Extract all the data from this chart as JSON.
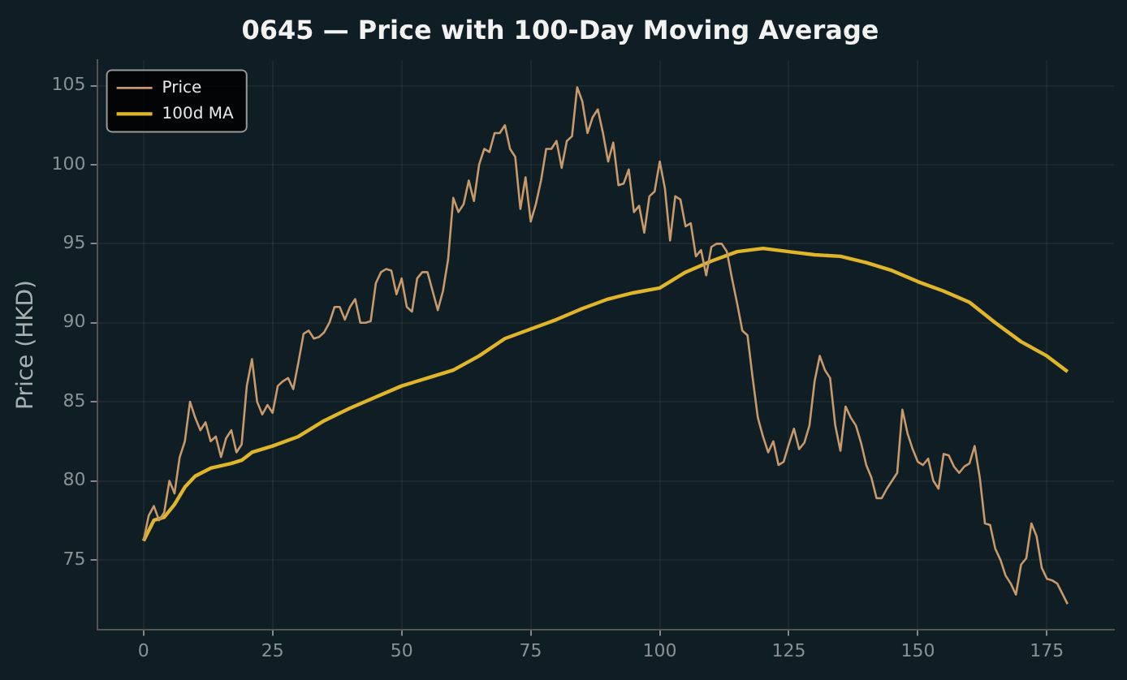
{
  "chart_data": {
    "type": "line",
    "title": "0645 — Price with 100-Day Moving Average",
    "ylabel": "Price (HKD)",
    "xlim": [
      -9,
      188
    ],
    "ylim": [
      70.6,
      106.6
    ],
    "xticks": [
      0,
      25,
      50,
      75,
      100,
      125,
      150,
      175
    ],
    "yticks": [
      75,
      80,
      85,
      90,
      95,
      100,
      105
    ],
    "grid": true,
    "legend": "top left",
    "marker": "none",
    "line_style": "solid",
    "series": [
      {
        "name": "Price",
        "color": "#c8996a",
        "x": [
          0,
          1,
          2,
          3,
          4,
          5,
          6,
          7,
          8,
          9,
          10,
          11,
          12,
          13,
          14,
          15,
          16,
          17,
          18,
          19,
          20,
          21,
          22,
          23,
          24,
          25,
          26,
          27,
          28,
          29,
          30,
          31,
          32,
          33,
          34,
          35,
          36,
          37,
          38,
          39,
          40,
          41,
          42,
          43,
          44,
          45,
          46,
          47,
          48,
          49,
          50,
          51,
          52,
          53,
          54,
          55,
          56,
          57,
          58,
          59,
          60,
          61,
          62,
          63,
          64,
          65,
          66,
          67,
          68,
          69,
          70,
          71,
          72,
          73,
          74,
          75,
          76,
          77,
          78,
          79,
          80,
          81,
          82,
          83,
          84,
          85,
          86,
          87,
          88,
          89,
          90,
          91,
          92,
          93,
          94,
          95,
          96,
          97,
          98,
          99,
          100,
          101,
          102,
          103,
          104,
          105,
          106,
          107,
          108,
          109,
          110,
          111,
          112,
          113,
          114,
          115,
          116,
          117,
          118,
          119,
          120,
          121,
          122,
          123,
          124,
          125,
          126,
          127,
          128,
          129,
          130,
          131,
          132,
          133,
          134,
          135,
          136,
          137,
          138,
          139,
          140,
          141,
          142,
          143,
          144,
          145,
          146,
          147,
          148,
          149,
          150,
          151,
          152,
          153,
          154,
          155,
          156,
          157,
          158,
          159,
          160,
          161,
          162,
          163,
          164,
          165,
          166,
          167,
          168,
          169,
          170,
          171,
          172,
          173,
          174,
          175,
          176,
          177,
          179
        ],
        "values": [
          76.2,
          77.8,
          78.4,
          77.5,
          78.0,
          80.0,
          79.2,
          81.5,
          82.5,
          85.0,
          84.0,
          83.2,
          83.7,
          82.5,
          82.8,
          81.5,
          82.7,
          83.2,
          81.8,
          82.3,
          86.0,
          87.7,
          85.0,
          84.2,
          84.8,
          84.3,
          86.0,
          86.3,
          86.5,
          85.8,
          87.5,
          89.3,
          89.5,
          89.0,
          89.1,
          89.4,
          90.0,
          91.0,
          91.0,
          90.2,
          91.0,
          91.5,
          90.0,
          90.0,
          90.1,
          92.5,
          93.2,
          93.4,
          93.3,
          91.8,
          92.8,
          91.0,
          90.7,
          92.8,
          93.2,
          93.2,
          92.0,
          90.8,
          92.0,
          94.0,
          97.9,
          97.0,
          97.5,
          99.0,
          97.7,
          100.0,
          101.0,
          100.8,
          102.0,
          102.0,
          102.5,
          101.0,
          100.5,
          97.2,
          99.2,
          96.4,
          97.5,
          99.0,
          101.0,
          101.0,
          101.5,
          99.8,
          101.5,
          101.8,
          104.9,
          104.0,
          102.0,
          103.0,
          103.5,
          102.0,
          100.2,
          101.4,
          98.7,
          98.8,
          99.7,
          97.0,
          97.4,
          95.7,
          98.0,
          98.3,
          100.2,
          98.5,
          95.2,
          98.0,
          97.8,
          96.1,
          96.3,
          94.2,
          94.6,
          93.0,
          94.8,
          95.0,
          95.0,
          94.5,
          92.8,
          91.2,
          89.5,
          89.2,
          86.5,
          84.0,
          82.8,
          81.8,
          82.5,
          81.0,
          81.2,
          82.3,
          83.3,
          82.0,
          82.4,
          83.5,
          86.3,
          87.9,
          87.0,
          86.5,
          83.5,
          81.9,
          84.7,
          84.0,
          83.5,
          82.4,
          81.0,
          80.2,
          78.9,
          78.9,
          79.5,
          80.0,
          80.5,
          84.5,
          83.0,
          82.0,
          81.2,
          81.0,
          81.4,
          80.0,
          79.5,
          81.7,
          81.6,
          80.9,
          80.5,
          80.9,
          81.1,
          82.2,
          80.2,
          77.3,
          77.2,
          75.7,
          75.0,
          74.0,
          73.5,
          72.8,
          74.7,
          75.1,
          77.3,
          76.5,
          74.5,
          73.8,
          73.7,
          73.5,
          72.2
        ]
      },
      {
        "name": "100d MA",
        "color": "#e0b52a",
        "x": [
          0,
          2,
          4,
          6,
          8,
          10,
          13,
          17,
          19,
          21,
          25,
          30,
          35,
          40,
          45,
          50,
          55,
          60,
          65,
          70,
          75,
          80,
          85,
          90,
          95,
          100,
          105,
          110,
          115,
          120,
          125,
          130,
          135,
          140,
          145,
          150,
          155,
          160,
          165,
          170,
          175,
          179
        ],
        "values": [
          76.2,
          77.5,
          77.7,
          78.5,
          79.6,
          80.3,
          80.8,
          81.1,
          81.3,
          81.8,
          82.2,
          82.8,
          83.8,
          84.6,
          85.3,
          86.0,
          86.5,
          87.0,
          87.9,
          89.0,
          89.6,
          90.2,
          90.9,
          91.5,
          91.9,
          92.2,
          93.2,
          93.9,
          94.5,
          94.7,
          94.5,
          94.3,
          94.2,
          93.8,
          93.3,
          92.6,
          92.0,
          91.3,
          90.0,
          88.8,
          87.9,
          86.9
        ]
      }
    ]
  }
}
